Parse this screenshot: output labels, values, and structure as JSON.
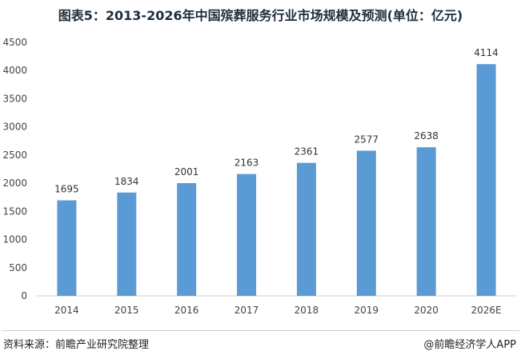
{
  "chart_data": {
    "type": "bar",
    "title": "图表5：2013-2026年中国殡葬服务行业市场规模及预测(单位：亿元)",
    "categories": [
      "2014",
      "2015",
      "2016",
      "2017",
      "2018",
      "2019",
      "2020",
      "2026E"
    ],
    "values": [
      1695,
      1834,
      2001,
      2163,
      2361,
      2577,
      2638,
      4114
    ],
    "ylim": [
      0,
      4500
    ],
    "yticks": [
      0,
      500,
      1000,
      1500,
      2000,
      2500,
      3000,
      3500,
      4000,
      4500
    ],
    "grid": false,
    "legend": "none",
    "colors": {
      "bar": "#5b9bd5"
    }
  },
  "footer": {
    "source": "资料来源：前瞻产业研究院整理",
    "brand": "@前瞻经济学人APP"
  }
}
